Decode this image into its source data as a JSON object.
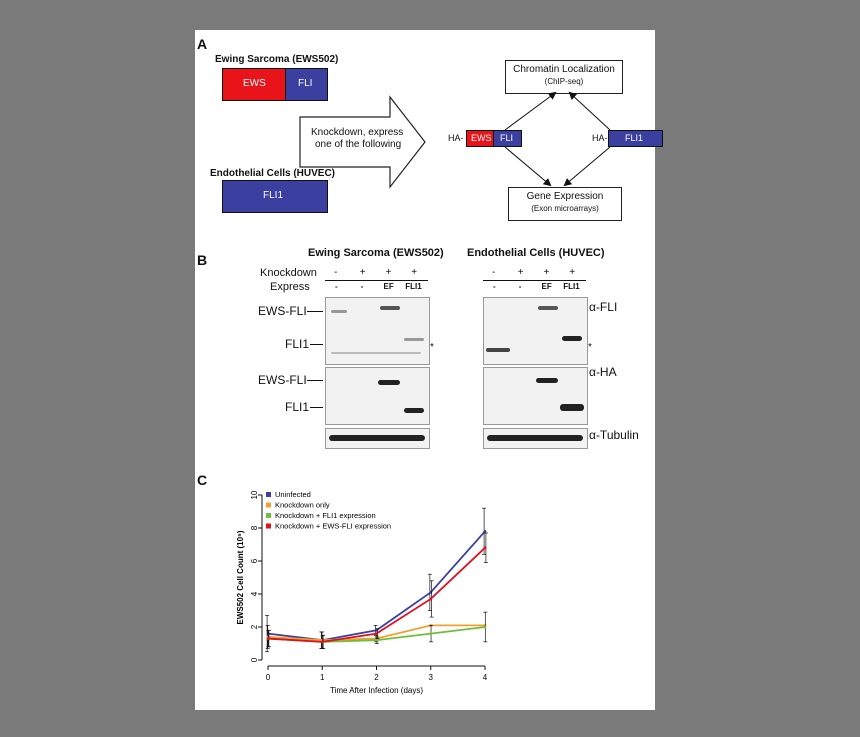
{
  "panelA": {
    "letter": "A",
    "ews_title": "Ewing Sarcoma (EWS502)",
    "ews_label": "EWS",
    "fli_label": "FLI",
    "arrow_text_1": "Knockdown, express",
    "arrow_text_2": "one of the following",
    "huvec_title": "Endothelial Cells (HUVEC)",
    "fli1_label": "FLI1",
    "chip_title": "Chromatin Localization",
    "chip_sub": "(ChIP-seq)",
    "ha_left": "HA-",
    "ha_ews": "EWS",
    "ha_fli": "FLI",
    "ha_right": "HA-",
    "ha_fli1": "FLI1",
    "gene_title": "Gene Expression",
    "gene_sub": "(Exon microarrays)",
    "colors": {
      "ews": "#e8141a",
      "fli": "#3b3fa0"
    }
  },
  "panelB": {
    "letter": "B",
    "left_title": "Ewing Sarcoma (EWS502)",
    "right_title": "Endothelial Cells (HUVEC)",
    "row_knockdown": "Knockdown",
    "row_express": "Express",
    "knockdown": [
      "-",
      "+",
      "+",
      "+"
    ],
    "express": [
      "-",
      "-",
      "EF",
      "FLI1"
    ],
    "ews_fli": "EWS-FLI",
    "fli1": "FLI1",
    "ews_fli_2": "EWS-FLI",
    "fli1_2": "FLI1",
    "star": "*",
    "star2": "*",
    "ab_fli": "α-FLI",
    "ab_ha": "α-HA",
    "ab_tub": "α-Tubulin"
  },
  "panelC": {
    "letter": "C",
    "chart_data": {
      "type": "line",
      "x": [
        0,
        1,
        2,
        3,
        4
      ],
      "xlabel": "Time After Infection (days)",
      "ylabel": "EWS502 Cell Count (10⁵)",
      "xlim": [
        0,
        4
      ],
      "ylim": [
        0,
        10
      ],
      "xticks": [
        "0",
        "1",
        "2",
        "3",
        "4"
      ],
      "yticks": [
        "0",
        "2",
        "4",
        "6",
        "8",
        "10"
      ],
      "legend_position": "top-left",
      "series": [
        {
          "name": "Uninfected",
          "color": "#3b3fa0",
          "values": [
            1.6,
            1.2,
            1.8,
            4.1,
            7.8
          ],
          "err": [
            1.1,
            0.5,
            0.3,
            1.1,
            1.4
          ]
        },
        {
          "name": "Knockdown only",
          "color": "#f0a030",
          "values": [
            1.4,
            1.2,
            1.3,
            2.1,
            2.1
          ],
          "err": [
            0.7,
            0.5,
            0.2,
            0,
            0
          ]
        },
        {
          "name": "Knockdown + FLI1 expression",
          "color": "#6fbf3a",
          "values": [
            1.3,
            1.1,
            1.2,
            1.6,
            2.0
          ],
          "err": [
            0.5,
            0.4,
            0.2,
            0.5,
            0.9
          ]
        },
        {
          "name": "Knockdown + EWS-FLI expression",
          "color": "#e01020",
          "values": [
            1.3,
            1.1,
            1.6,
            3.7,
            6.8
          ],
          "err": [
            0.5,
            0.4,
            0.3,
            1.1,
            0.9
          ]
        }
      ]
    }
  }
}
